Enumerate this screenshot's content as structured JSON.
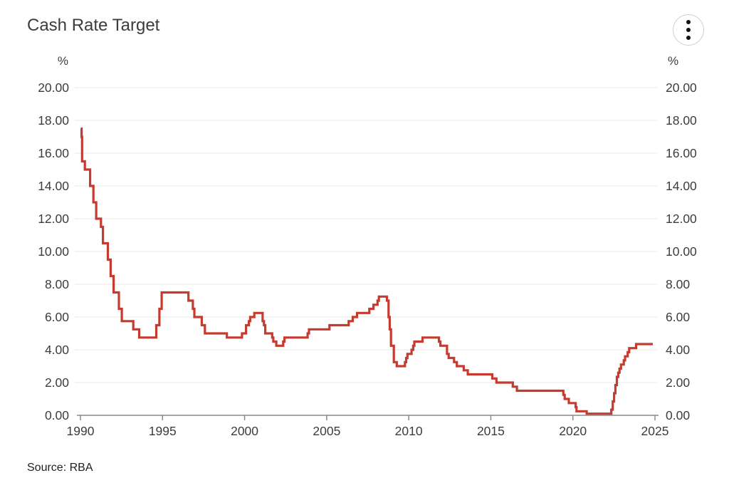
{
  "header": {
    "title": "Cash Rate Target"
  },
  "axes": {
    "left_unit_label": "%",
    "right_unit_label": "%"
  },
  "footer": {
    "source": "Source: RBA"
  },
  "colors": {
    "line": "#c53b30",
    "gridline": "#e7e7e7",
    "axis_line": "#8a8a8a",
    "text": "#3c3c3c"
  },
  "chart_data": {
    "type": "line",
    "line_style": "step-after",
    "title": "Cash Rate Target",
    "ylabel": "%",
    "xlabel": "",
    "source": "Source: RBA",
    "legend_position": "none",
    "grid": "horizontal",
    "xlim": [
      1990,
      2025
    ],
    "ylim": [
      0,
      20
    ],
    "x_ticks": [
      1990,
      1995,
      2000,
      2005,
      2010,
      2015,
      2020,
      2025
    ],
    "y_ticks": [
      0,
      2,
      4,
      6,
      8,
      10,
      12,
      14,
      16,
      18,
      20
    ],
    "y_tick_decimals": 2,
    "series": [
      {
        "name": "Cash Rate Target",
        "color": "#c53b30",
        "points": [
          [
            1990.02,
            17.5
          ],
          [
            1990.07,
            17.0
          ],
          [
            1990.1,
            15.5
          ],
          [
            1990.27,
            15.0
          ],
          [
            1990.59,
            14.0
          ],
          [
            1990.79,
            13.0
          ],
          [
            1990.96,
            12.0
          ],
          [
            1991.25,
            11.5
          ],
          [
            1991.37,
            10.5
          ],
          [
            1991.67,
            9.5
          ],
          [
            1991.84,
            8.5
          ],
          [
            1992.02,
            7.5
          ],
          [
            1992.34,
            6.5
          ],
          [
            1992.52,
            5.75
          ],
          [
            1993.22,
            5.25
          ],
          [
            1993.58,
            4.75
          ],
          [
            1994.62,
            5.5
          ],
          [
            1994.81,
            6.5
          ],
          [
            1994.95,
            7.5
          ],
          [
            1996.58,
            7.0
          ],
          [
            1996.85,
            6.5
          ],
          [
            1996.94,
            6.0
          ],
          [
            1997.39,
            5.5
          ],
          [
            1997.58,
            5.0
          ],
          [
            1998.92,
            4.75
          ],
          [
            1999.84,
            5.0
          ],
          [
            2000.09,
            5.5
          ],
          [
            2000.26,
            5.75
          ],
          [
            2000.34,
            6.0
          ],
          [
            2000.59,
            6.25
          ],
          [
            2001.1,
            5.75
          ],
          [
            2001.18,
            5.5
          ],
          [
            2001.26,
            5.0
          ],
          [
            2001.68,
            4.75
          ],
          [
            2001.75,
            4.5
          ],
          [
            2001.93,
            4.25
          ],
          [
            2002.35,
            4.5
          ],
          [
            2002.43,
            4.75
          ],
          [
            2003.84,
            5.0
          ],
          [
            2003.92,
            5.25
          ],
          [
            2005.17,
            5.5
          ],
          [
            2006.34,
            5.75
          ],
          [
            2006.59,
            6.0
          ],
          [
            2006.85,
            6.25
          ],
          [
            2007.6,
            6.5
          ],
          [
            2007.85,
            6.75
          ],
          [
            2008.1,
            7.0
          ],
          [
            2008.18,
            7.25
          ],
          [
            2008.67,
            7.0
          ],
          [
            2008.77,
            6.0
          ],
          [
            2008.84,
            5.25
          ],
          [
            2008.92,
            4.25
          ],
          [
            2009.09,
            3.25
          ],
          [
            2009.27,
            3.0
          ],
          [
            2009.77,
            3.25
          ],
          [
            2009.84,
            3.5
          ],
          [
            2009.92,
            3.75
          ],
          [
            2010.17,
            4.0
          ],
          [
            2010.27,
            4.25
          ],
          [
            2010.34,
            4.5
          ],
          [
            2010.84,
            4.75
          ],
          [
            2011.84,
            4.5
          ],
          [
            2011.93,
            4.25
          ],
          [
            2012.33,
            3.75
          ],
          [
            2012.43,
            3.5
          ],
          [
            2012.76,
            3.25
          ],
          [
            2012.93,
            3.0
          ],
          [
            2013.35,
            2.75
          ],
          [
            2013.6,
            2.5
          ],
          [
            2015.09,
            2.25
          ],
          [
            2015.34,
            2.0
          ],
          [
            2016.34,
            1.75
          ],
          [
            2016.59,
            1.5
          ],
          [
            2019.42,
            1.25
          ],
          [
            2019.5,
            1.0
          ],
          [
            2019.75,
            0.75
          ],
          [
            2020.17,
            0.5
          ],
          [
            2020.22,
            0.25
          ],
          [
            2020.84,
            0.1
          ],
          [
            2022.34,
            0.35
          ],
          [
            2022.43,
            0.85
          ],
          [
            2022.51,
            1.35
          ],
          [
            2022.59,
            1.85
          ],
          [
            2022.68,
            2.35
          ],
          [
            2022.76,
            2.6
          ],
          [
            2022.84,
            2.85
          ],
          [
            2022.93,
            3.1
          ],
          [
            2023.1,
            3.35
          ],
          [
            2023.18,
            3.6
          ],
          [
            2023.34,
            3.85
          ],
          [
            2023.43,
            4.1
          ],
          [
            2023.85,
            4.35
          ],
          [
            2024.87,
            4.35
          ]
        ]
      }
    ]
  }
}
